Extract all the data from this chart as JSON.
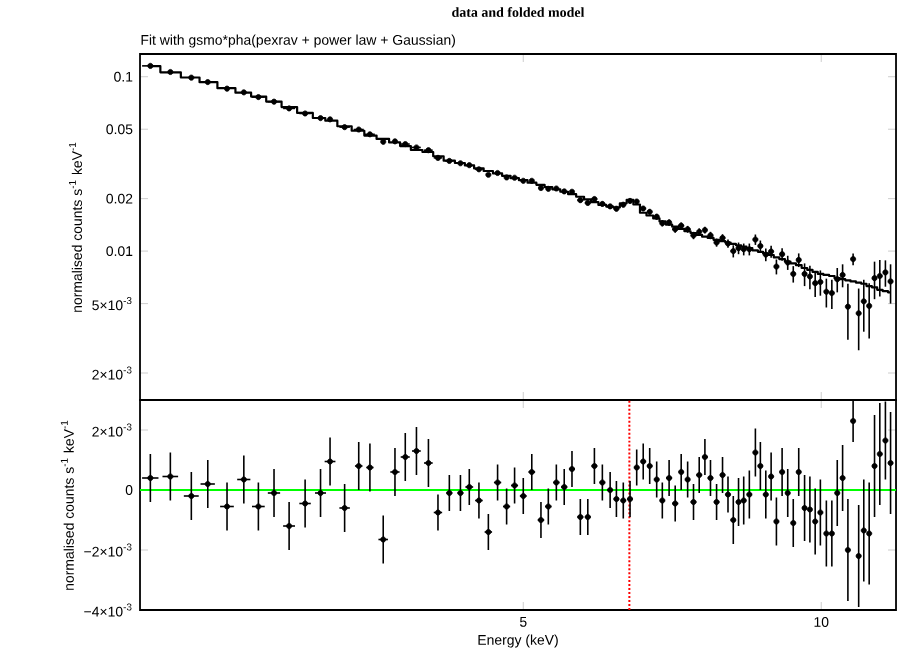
{
  "chart_data": [
    {
      "type": "scatter",
      "title": "data and folded model",
      "subtitle": "Fit with gsmo*pha(pexrav + power law + Gaussian)",
      "ylabel": "normalised counts s$^{-1}$ keV$^{-1}$",
      "log": "xy",
      "tick_labels": "y",
      "xlim": [
        2.05,
        11.9
      ],
      "ylim": [
        0.0014,
        0.135
      ],
      "xticks": [
        5,
        10
      ],
      "yticks": [
        {
          "value": 0.002,
          "label": "2×10$^{-3}$"
        },
        {
          "value": 0.005,
          "label": "5×10$^{-3}$"
        },
        0.01,
        0.02,
        0.05,
        0.1
      ],
      "x": [
        2.1,
        2.2,
        2.31,
        2.4,
        2.51,
        2.61,
        2.7,
        2.8,
        2.9,
        3.01,
        3.12,
        3.19,
        3.3,
        3.41,
        3.5,
        3.61,
        3.71,
        3.8,
        3.9,
        4.01,
        4.1,
        4.21,
        4.32,
        4.41,
        4.51,
        4.61,
        4.71,
        4.81,
        4.9,
        5.0,
        5.1,
        5.21,
        5.3,
        5.4,
        5.5,
        5.6,
        5.71,
        5.81,
        5.9,
        6.01,
        6.12,
        6.21,
        6.31,
        6.41,
        6.51,
        6.61,
        6.71,
        6.82,
        6.91,
        7.02,
        7.12,
        7.22,
        7.33,
        7.43,
        7.53,
        7.63,
        7.73,
        7.84,
        7.95,
        8.05,
        8.15,
        8.25,
        8.35,
        8.46,
        8.58,
        8.68,
        8.79,
        8.9,
        9.01,
        9.13,
        9.25,
        9.37,
        9.49,
        9.62,
        9.74,
        9.86,
        9.98,
        10.12,
        10.25,
        10.38,
        10.51,
        10.64,
        10.77,
        10.91,
        11.04,
        11.18,
        11.32,
        11.46,
        11.61,
        11.75
      ],
      "series": [
        {
          "color": "#000000",
          "values": [
            0.1154,
            0.10645,
            0.0988,
            0.0932,
            0.08545,
            0.08135,
            0.07645,
            0.07195,
            0.0658,
            0.06155,
            0.0579,
            0.05695,
            0.0514,
            0.0498,
            0.04675,
            0.04235,
            0.0426,
            0.0411,
            0.0393,
            0.0379,
            0.03425,
            0.0329,
            0.0319,
            0.0311,
            0.02945,
            0.0274,
            0.02805,
            0.02645,
            0.02635,
            0.0253,
            0.0253,
            0.023,
            0.02275,
            0.02285,
            0.022,
            0.0219,
            0.0196,
            0.0189,
            0.0199,
            0.01865,
            0.01805,
            0.0175,
            0.01845,
            0.0194,
            0.01925,
            0.01755,
            0.0168,
            0.01575,
            0.01445,
            0.0146,
            0.01335,
            0.014,
            0.01335,
            0.0123,
            0.0129,
            0.0132,
            0.0123,
            0.0112,
            0.0119,
            0.01105,
            0.01,
            0.0104,
            0.01025,
            0.01025,
            0.01165,
            0.0107,
            0.00955,
            0.00995,
            0.00815,
            0.0096,
            0.0086,
            0.0074,
            0.0089,
            0.0074,
            0.00715,
            0.00655,
            0.00665,
            0.00585,
            0.00575,
            0.0069,
            0.0073,
            0.0048,
            0.009,
            0.0044,
            0.00515,
            0.00485,
            0.007,
            0.0072,
            0.00755,
            0.0067
          ],
          "errors": [
            null,
            null,
            null,
            null,
            null,
            null,
            null,
            null,
            null,
            null,
            null,
            null,
            null,
            null,
            null,
            null,
            null,
            null,
            null,
            null,
            null,
            null,
            null,
            null,
            0.0006,
            0.0006,
            0.0006,
            0.0006,
            0.0006,
            0.0006,
            0.0006,
            0.0006,
            0.0006,
            0.0006,
            0.0006,
            0.0006,
            0.0006,
            0.0006,
            0.0006,
            0.0006,
            0.0006,
            0.0006,
            0.0006,
            0.0006,
            0.0006,
            0.0006,
            0.0006,
            0.0006,
            0.0006,
            0.0006,
            0.0006,
            0.0006,
            0.0006,
            0.0006,
            0.0006,
            0.0006,
            0.0006,
            0.0006,
            0.0006,
            0.0006,
            0.0008,
            0.0008,
            0.0008,
            0.0008,
            0.0008,
            0.0008,
            0.0008,
            0.0008,
            0.0008,
            0.0008,
            0.0008,
            0.0008,
            0.0008,
            0.0011,
            0.0011,
            0.0011,
            0.0011,
            0.0011,
            0.0011,
            0.0011,
            0.0011,
            0.0017,
            0.0007,
            0.0017,
            0.0017,
            0.0017,
            0.0017,
            0.0017,
            0.0013,
            0.0017
          ],
          "xerrors": [
            0.04,
            null,
            null,
            null,
            null,
            null,
            0.04,
            0.04,
            0.04,
            0.04,
            null,
            null,
            0.04,
            0.04,
            0.04,
            null,
            null,
            0.04,
            0.04,
            0.04,
            0.04,
            0.04,
            null,
            null,
            0.04,
            null,
            null,
            null,
            null,
            null,
            null,
            null,
            null,
            null,
            null,
            null,
            0.04,
            0.04,
            0.04,
            0.04,
            0.04,
            0.04,
            0.04,
            null,
            null,
            0.04,
            0.04,
            0.04,
            null,
            null,
            0.05,
            0.05,
            0.05,
            0.05,
            null,
            null,
            0.05,
            0.05,
            0.05,
            0.05,
            0.05,
            null,
            null,
            0.05,
            0.05,
            0.05,
            0.05,
            0.05,
            0.05,
            0.05,
            0.05,
            0.05,
            0.05,
            0.05,
            0.05,
            0.05,
            0.05,
            0.05,
            0.05,
            0.05,
            0.05,
            0.05,
            0.05,
            0.05,
            0.05,
            0.05,
            0.05,
            0.05,
            0.05,
            0.05
          ]
        },
        {
          "type": "step",
          "color": "#000000",
          "values": [
            0.115,
            0.106,
            0.099,
            0.093,
            0.086,
            0.081,
            0.077,
            0.072,
            0.067,
            0.062,
            0.058,
            0.056,
            0.052,
            0.049,
            0.046,
            0.044,
            0.042,
            0.04,
            0.038,
            0.037,
            0.035,
            0.033,
            0.032,
            0.031,
            0.0298,
            0.0288,
            0.0279,
            0.027,
            0.0262,
            0.0255,
            0.0247,
            0.024,
            0.0233,
            0.0226,
            0.0219,
            0.0212,
            0.0205,
            0.0198,
            0.0191,
            0.0184,
            0.018,
            0.0178,
            0.0188,
            0.0197,
            0.0185,
            0.0166,
            0.016,
            0.0154,
            0.0148,
            0.0142,
            0.0138,
            0.0134,
            0.013,
            0.0127,
            0.0124,
            0.0121,
            0.0119,
            0.0116,
            0.0114,
            0.0112,
            0.011,
            0.0108,
            0.0106,
            0.0104,
            0.0101,
            0.0099,
            0.0097,
            0.0095,
            0.0092,
            0.009,
            0.0087,
            0.0085,
            0.0083,
            0.008,
            0.0078,
            0.0076,
            0.0074,
            0.0073,
            0.0072,
            0.007,
            0.0069,
            0.0068,
            0.0067,
            0.0066,
            0.0065,
            0.0063,
            0.0062,
            0.006,
            0.0059,
            0.0058
          ]
        }
      ]
    },
    {
      "type": "scatter",
      "xlabel": "Energy (keV)",
      "ylabel": "normalised counts s$^{-1}$ keV$^{-1}$",
      "log": "x",
      "xlim": [
        2.05,
        11.9
      ],
      "ylim": [
        -0.004,
        0.003
      ],
      "xticks": [
        5,
        10
      ],
      "yticks": [
        {
          "value": -0.004,
          "label": "−4×10$^{-3}$"
        },
        {
          "value": -0.002,
          "label": "−2×10$^{-3}$"
        },
        0,
        {
          "value": 0.002,
          "label": "2×10$^{-3}$"
        }
      ],
      "x": [
        2.1,
        2.2,
        2.31,
        2.4,
        2.51,
        2.61,
        2.7,
        2.8,
        2.9,
        3.01,
        3.12,
        3.19,
        3.3,
        3.41,
        3.5,
        3.61,
        3.71,
        3.8,
        3.9,
        4.01,
        4.1,
        4.21,
        4.32,
        4.41,
        4.51,
        4.61,
        4.71,
        4.81,
        4.9,
        5.0,
        5.1,
        5.21,
        5.3,
        5.4,
        5.5,
        5.6,
        5.71,
        5.81,
        5.9,
        6.01,
        6.12,
        6.21,
        6.31,
        6.41,
        6.51,
        6.61,
        6.71,
        6.82,
        6.91,
        7.02,
        7.12,
        7.22,
        7.33,
        7.43,
        7.53,
        7.63,
        7.73,
        7.84,
        7.95,
        8.05,
        8.15,
        8.25,
        8.35,
        8.46,
        8.58,
        8.68,
        8.79,
        8.9,
        9.01,
        9.13,
        9.25,
        9.37,
        9.49,
        9.62,
        9.74,
        9.86,
        9.98,
        10.12,
        10.25,
        10.38,
        10.51,
        10.64,
        10.77,
        10.91,
        11.04,
        11.18,
        11.32,
        11.46,
        11.61,
        11.75
      ],
      "series": [
        {
          "color": "#000000",
          "values": [
            0.0004,
            0.00045,
            -0.0002,
            0.0002,
            -0.00055,
            0.00035,
            -0.00055,
            -0.0001,
            -0.0012,
            -0.00045,
            -0.0001,
            0.00095,
            -0.0006,
            0.0008,
            0.00075,
            -0.00165,
            0.0006,
            0.0011,
            0.0013,
            0.0009,
            -0.00075,
            -0.0001,
            -0.0001,
            0.0001,
            -0.00035,
            -0.0014,
            0.00025,
            -0.00055,
            0.00015,
            -0.0002,
            0.0006,
            -0.001,
            -0.00055,
            0.00025,
            0.0001,
            0.0007,
            -0.0009,
            -0.0009,
            0.0008,
            0.00025,
            0,
            -0.0003,
            -0.00035,
            -0.0003,
            0.00075,
            0.00095,
            0.0008,
            0.00035,
            -0.00035,
            0.0004,
            -0.00045,
            0.0006,
            0.00035,
            -0.0004,
            0.0005,
            0.0011,
            0.0004,
            -0.0004,
            0.0005,
            -0.00015,
            -0.001,
            -0.0004,
            -0.00035,
            -0.00015,
            0.00125,
            0.0008,
            -0.00015,
            0.00045,
            -0.00105,
            0.0006,
            -0.0001,
            -0.0011,
            0.0006,
            -0.0006,
            -0.00065,
            -0.00105,
            -0.00075,
            -0.00145,
            -0.00145,
            -0.0001,
            0.0004,
            -0.002,
            0.0023,
            -0.0022,
            -0.00135,
            -0.00145,
            0.0008,
            0.0012,
            0.00165,
            0.0009
          ],
          "errors": [
            0.0008,
            0.0008,
            0.0008,
            0.0008,
            0.0008,
            0.0008,
            0.0008,
            0.0008,
            0.0008,
            0.0008,
            0.0008,
            0.0008,
            0.0008,
            0.0008,
            0.0008,
            0.0008,
            0.0008,
            0.0008,
            0.0008,
            0.0008,
            0.0006,
            0.0006,
            0.0006,
            0.0006,
            0.0006,
            0.0006,
            0.0006,
            0.0006,
            0.0006,
            0.0006,
            0.0006,
            0.0006,
            0.0006,
            0.0006,
            0.0006,
            0.0006,
            0.0006,
            0.0006,
            0.0006,
            0.0006,
            0.0006,
            0.0006,
            0.0006,
            0.0006,
            0.0006,
            0.0006,
            0.0006,
            0.0006,
            0.0006,
            0.0006,
            0.0006,
            0.0006,
            0.0006,
            0.0006,
            0.0006,
            0.0006,
            0.0006,
            0.0006,
            0.0006,
            0.0006,
            0.0008,
            0.0008,
            0.0008,
            0.0008,
            0.0008,
            0.0008,
            0.0008,
            0.0008,
            0.0008,
            0.0008,
            0.0008,
            0.0008,
            0.0008,
            0.0011,
            0.0011,
            0.0011,
            0.0011,
            0.0011,
            0.0011,
            0.0011,
            0.0011,
            0.0017,
            0.0007,
            0.0017,
            0.0017,
            0.0017,
            0.0017,
            0.0017,
            0.0013,
            0.0017
          ],
          "xerrors": [
            0.04,
            0.04,
            0.04,
            0.04,
            0.04,
            0.04,
            0.04,
            0.04,
            0.04,
            0.04,
            0.04,
            0.04,
            0.04,
            0.03,
            0.03,
            0.04,
            0.04,
            0.04,
            0.04,
            0.04,
            0.04,
            0.03,
            0.03,
            0.04,
            0.04,
            0.04,
            0.04,
            0.04,
            0.04,
            0.04,
            0.04,
            0.04,
            0.04,
            0.04,
            0.04,
            0.04,
            0.04,
            0.04,
            0.04,
            0.04,
            0.04,
            0.04,
            0.04,
            0.04,
            0.04,
            0.04,
            0.04,
            0.04,
            0.04,
            0.05,
            0.05,
            0.04,
            0.04,
            0.05,
            0.05,
            0.05,
            0.05,
            0.05,
            0.05,
            0.05,
            0.05,
            0.05,
            0.05,
            0.05,
            0.05,
            0.05,
            0.05,
            0.05,
            0.05,
            0.05,
            0.05,
            0.05,
            0.05,
            0.05,
            0.05,
            0.05,
            0.05,
            0.05,
            0.05,
            0.05,
            0.05,
            0.05,
            0.05,
            0.05,
            0.05,
            0.05,
            0.05,
            0.05,
            0.05,
            0.05
          ]
        }
      ],
      "ref_lines": [
        {
          "axis": "y",
          "value": 0,
          "color": "#00ff00"
        },
        {
          "axis": "x",
          "value": 6.4,
          "color": "#ff0000",
          "line_style": "dotted"
        }
      ]
    }
  ]
}
